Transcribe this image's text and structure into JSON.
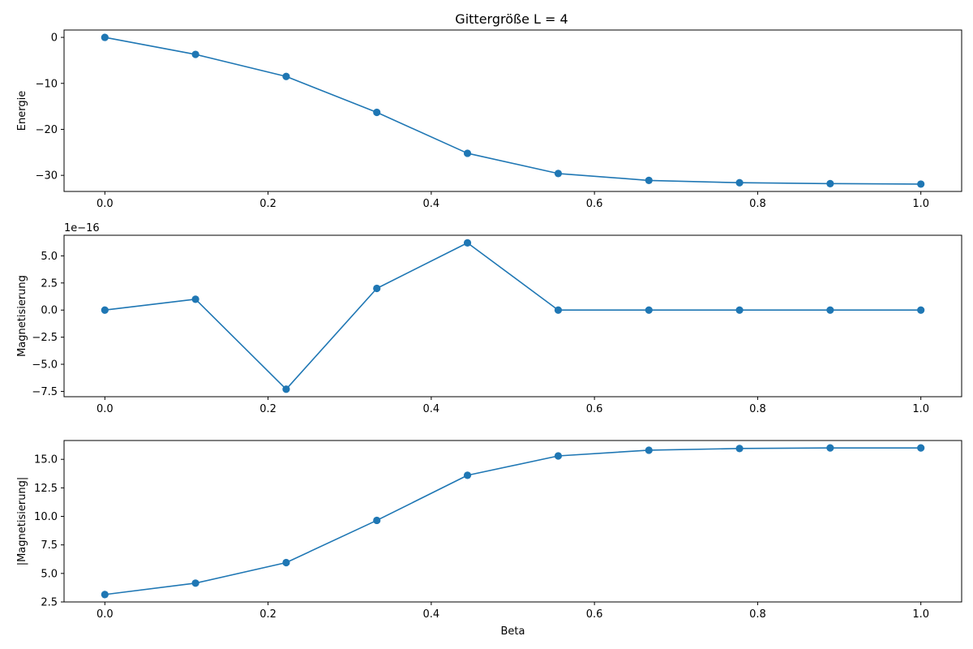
{
  "figure": {
    "title": "Gittergröße L = 4",
    "line_color": "#1f77b4"
  },
  "chart_data": [
    {
      "type": "line",
      "title": "Gittergröße L = 4",
      "xlabel": "",
      "ylabel": "Energie",
      "x": [
        0.0,
        0.1111,
        0.2222,
        0.3333,
        0.4444,
        0.5556,
        0.6667,
        0.7778,
        0.8889,
        1.0
      ],
      "series": [
        {
          "values": [
            0.0,
            -3.7,
            -8.5,
            -16.3,
            -25.2,
            -29.6,
            -31.1,
            -31.6,
            -31.8,
            -31.9
          ]
        }
      ],
      "xlim": [
        -0.05,
        1.05
      ],
      "ylim": [
        -33.5,
        1.6
      ],
      "xticks": [
        0.0,
        0.2,
        0.4,
        0.6,
        0.8,
        1.0
      ],
      "xtick_labels": [
        "0.0",
        "0.2",
        "0.4",
        "0.6",
        "0.8",
        "1.0"
      ],
      "yticks": [
        0,
        -10,
        -20,
        -30
      ],
      "ytick_labels": [
        "0",
        "−10",
        "−20",
        "−30"
      ],
      "offset_text": "",
      "grid": false,
      "markers": true
    },
    {
      "type": "line",
      "title": "",
      "xlabel": "",
      "ylabel": "Magnetisierung",
      "x": [
        0.0,
        0.1111,
        0.2222,
        0.3333,
        0.4444,
        0.5556,
        0.6667,
        0.7778,
        0.8889,
        1.0
      ],
      "series": [
        {
          "values": [
            0.0,
            1e-16,
            -7.3e-16,
            2e-16,
            6.2e-16,
            0.0,
            0.0,
            0.0,
            0.0,
            0.0
          ]
        }
      ],
      "xlim": [
        -0.05,
        1.05
      ],
      "ylim": [
        -7.99e-16,
        6.9e-16
      ],
      "xticks": [
        0.0,
        0.2,
        0.4,
        0.6,
        0.8,
        1.0
      ],
      "xtick_labels": [
        "0.0",
        "0.2",
        "0.4",
        "0.6",
        "0.8",
        "1.0"
      ],
      "yticks": [
        5e-16,
        2.5e-16,
        0.0,
        -2.5e-16,
        -5e-16,
        -7.5e-16
      ],
      "ytick_labels": [
        "5.0",
        "2.5",
        "0.0",
        "−2.5",
        "−5.0",
        "−7.5"
      ],
      "offset_text": "1e−16",
      "grid": false,
      "markers": true
    },
    {
      "type": "line",
      "title": "",
      "xlabel": "Beta",
      "ylabel": "|Magnetisierung|",
      "x": [
        0.0,
        0.1111,
        0.2222,
        0.3333,
        0.4444,
        0.5556,
        0.6667,
        0.7778,
        0.8889,
        1.0
      ],
      "series": [
        {
          "values": [
            3.15,
            4.15,
            5.95,
            9.65,
            13.6,
            15.3,
            15.8,
            15.95,
            16.0,
            16.0
          ]
        }
      ],
      "xlim": [
        -0.05,
        1.05
      ],
      "ylim": [
        2.5,
        16.65
      ],
      "xticks": [
        0.0,
        0.2,
        0.4,
        0.6,
        0.8,
        1.0
      ],
      "xtick_labels": [
        "0.0",
        "0.2",
        "0.4",
        "0.6",
        "0.8",
        "1.0"
      ],
      "yticks": [
        2.5,
        5.0,
        7.5,
        10.0,
        12.5,
        15.0
      ],
      "ytick_labels": [
        "2.5",
        "5.0",
        "7.5",
        "10.0",
        "12.5",
        "15.0"
      ],
      "offset_text": "",
      "grid": false,
      "markers": true
    }
  ]
}
